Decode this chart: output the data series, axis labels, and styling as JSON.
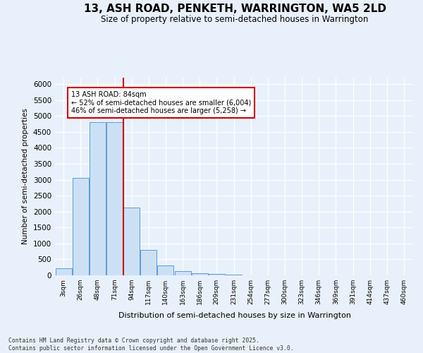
{
  "title": "13, ASH ROAD, PENKETH, WARRINGTON, WA5 2LD",
  "subtitle": "Size of property relative to semi-detached houses in Warrington",
  "xlabel": "Distribution of semi-detached houses by size in Warrington",
  "ylabel": "Number of semi-detached properties",
  "bin_labels": [
    "3sqm",
    "26sqm",
    "48sqm",
    "71sqm",
    "94sqm",
    "117sqm",
    "140sqm",
    "163sqm",
    "186sqm",
    "209sqm",
    "231sqm",
    "254sqm",
    "277sqm",
    "300sqm",
    "323sqm",
    "346sqm",
    "369sqm",
    "391sqm",
    "414sqm",
    "437sqm",
    "460sqm"
  ],
  "bar_values": [
    230,
    3050,
    4800,
    4800,
    2130,
    790,
    300,
    130,
    70,
    40,
    15,
    5,
    3,
    2,
    1,
    1,
    0,
    0,
    0,
    0,
    0
  ],
  "bar_color": "#cce0f5",
  "bar_edge_color": "#5b9bd5",
  "vline_position": 3.5,
  "vline_color": "#cc0000",
  "annotation_line1": "13 ASH ROAD: 84sqm",
  "annotation_line2": "← 52% of semi-detached houses are smaller (6,004)",
  "annotation_line3": "46% of semi-detached houses are larger (5,258) →",
  "annotation_box_edgecolor": "#cc0000",
  "ylim": [
    0,
    6200
  ],
  "yticks": [
    0,
    500,
    1000,
    1500,
    2000,
    2500,
    3000,
    3500,
    4000,
    4500,
    5000,
    5500,
    6000
  ],
  "bg_color": "#e8f1fb",
  "grid_color": "#ffffff",
  "footer_line1": "Contains HM Land Registry data © Crown copyright and database right 2025.",
  "footer_line2": "Contains public sector information licensed under the Open Government Licence v3.0."
}
